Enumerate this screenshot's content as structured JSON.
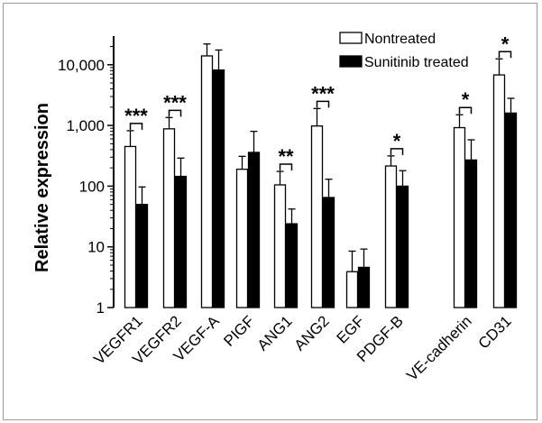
{
  "chart_data": {
    "type": "bar",
    "ylabel": "Relative expression",
    "yscale": "log",
    "ylim": [
      1,
      50000
    ],
    "yticks": [
      {
        "value": 1,
        "label": "1"
      },
      {
        "value": 10,
        "label": "10"
      },
      {
        "value": 100,
        "label": "100"
      },
      {
        "value": 1000,
        "label": "1,000"
      },
      {
        "value": 10000,
        "label": "10,000"
      }
    ],
    "categories": [
      "VEGFR1",
      "VEGFR2",
      "VEGF-A",
      "PIGF",
      "ANG1",
      "ANG2",
      "EGF",
      "PDGF-B",
      "VE-cadherin",
      "CD31"
    ],
    "series": [
      {
        "name": "Nontreated",
        "color": "#ffffff",
        "values": [
          450,
          880,
          14000,
          190,
          105,
          980,
          3.9,
          215,
          920,
          6800
        ],
        "errors": [
          820,
          1350,
          22000,
          310,
          175,
          1900,
          8.5,
          315,
          1500,
          12500
        ]
      },
      {
        "name": "Sunitinib treated",
        "color": "#000000",
        "values": [
          50,
          145,
          8200,
          360,
          24,
          65,
          4.6,
          100,
          270,
          1600
        ],
        "errors": [
          97,
          290,
          17500,
          800,
          42,
          130,
          9.2,
          180,
          580,
          2800
        ]
      }
    ],
    "significance": [
      {
        "category": "VEGFR1",
        "label": "***"
      },
      {
        "category": "VEGFR2",
        "label": "***"
      },
      {
        "category": "ANG1",
        "label": "**"
      },
      {
        "category": "ANG2",
        "label": "***"
      },
      {
        "category": "PDGF-B",
        "label": "*"
      },
      {
        "category": "VE-cadherin",
        "label": "*"
      },
      {
        "category": "CD31",
        "label": "*"
      }
    ],
    "legend": {
      "position": "top-right"
    }
  }
}
